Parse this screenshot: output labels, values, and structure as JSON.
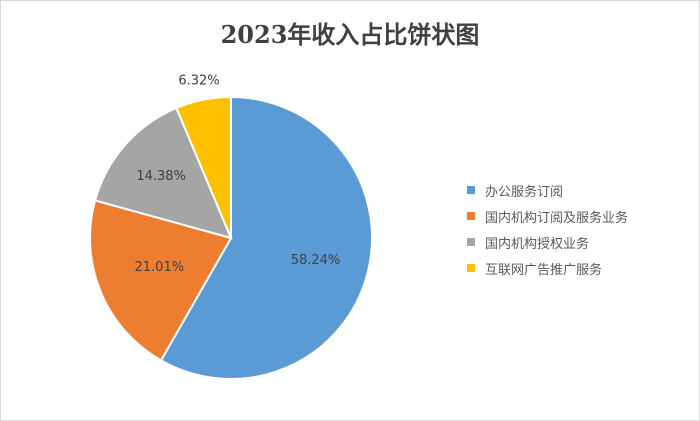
{
  "chart_data": {
    "type": "pie",
    "title": "2023年收入占比饼状图",
    "categories": [
      "办公服务订阅",
      "国内机构订阅及服务业务",
      "国内机构授权业务",
      "互联网广告推广服务"
    ],
    "values": [
      58.24,
      21.01,
      14.38,
      6.32
    ],
    "data_labels": [
      "58.24%",
      "21.01%",
      "14.38%",
      "6.32%"
    ],
    "colors": [
      "#5B9BD5",
      "#ED7D31",
      "#A5A5A5",
      "#FFC000"
    ],
    "legend_position": "right",
    "start_angle": "top, clockwise"
  }
}
